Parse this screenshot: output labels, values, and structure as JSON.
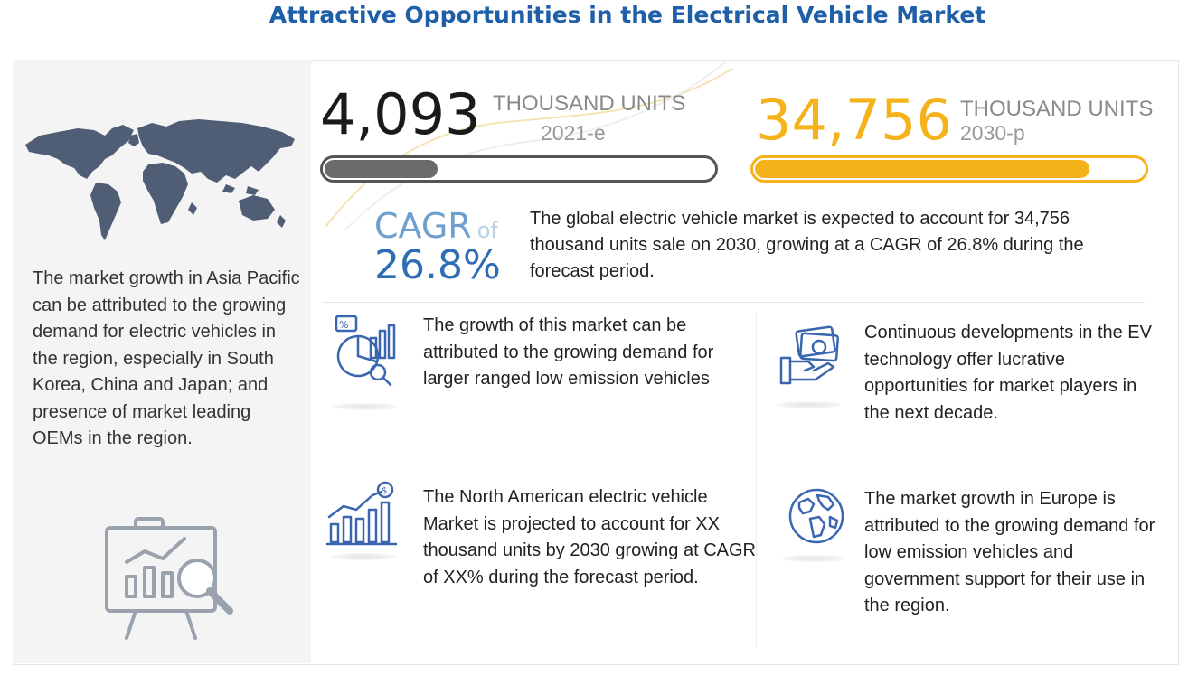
{
  "title": "Attractive Opportunities in the Electrical Vehicle Market",
  "left_panel": {
    "text": "The market growth in Asia Pacific can be attributed to the growing demand for electric vehicles in the region, especially in South Korea, China and Japan; and presence of market leading OEMs in the region.",
    "map_icon": "world-map-icon",
    "easel_icon": "analytics-easel-icon"
  },
  "metric_2021": {
    "value": "4,093",
    "unit": "THOUSAND UNITS",
    "year": "2021-e",
    "bar_fill": 0.29,
    "color": "#6b6b6b"
  },
  "metric_2030": {
    "value": "34,756",
    "unit": "THOUSAND UNITS",
    "year": "2030-p",
    "bar_fill": 0.86,
    "color": "#f5b21a"
  },
  "cagr": {
    "label": "CAGR",
    "of": "of",
    "value": "26.8%",
    "description": "The global electric vehicle market is expected to account for 34,756 thousand units sale on 2030, growing at a CAGR of 26.8% during the forecast period."
  },
  "insights": [
    {
      "icon": "analytics-chart-icon",
      "text": "The growth of this market can be attributed to the growing demand for larger ranged low emission vehicles"
    },
    {
      "icon": "growth-bar-chart-icon",
      "text": "The North American electric vehicle Market is projected to account for XX thousand units by 2030 growing at CAGR of XX% during the forecast period."
    },
    {
      "icon": "money-hand-icon",
      "text": "Continuous developments in the EV technology offer lucrative opportunities for market players in the next decade."
    },
    {
      "icon": "globe-icon",
      "text": "The market growth in Europe is attributed to the growing demand for low emission vehicles and government support for their use in the region."
    }
  ]
}
